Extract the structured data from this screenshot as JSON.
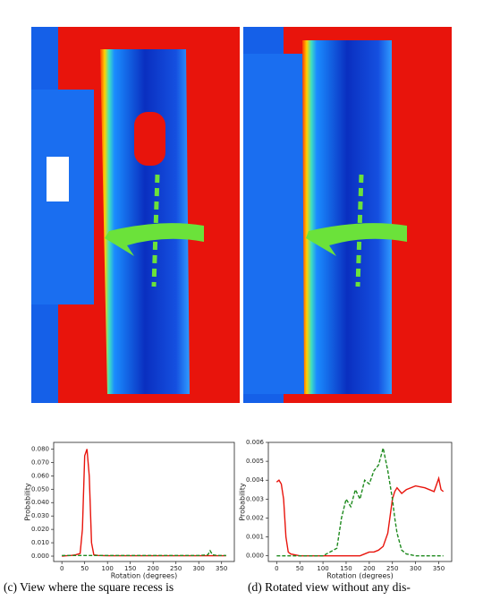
{
  "chart_data": [
    {
      "type": "line",
      "xlabel": "Rotation (degrees)",
      "ylabel": "Probability",
      "x": [
        0,
        10,
        20,
        30,
        40,
        45,
        50,
        55,
        60,
        65,
        70,
        80,
        100,
        150,
        200,
        250,
        300,
        320,
        325,
        330,
        340,
        360
      ],
      "series": [
        {
          "color": "#e8140c",
          "linestyle": "solid",
          "values": [
            0,
            0.0003,
            0.0005,
            0.001,
            0.002,
            0.02,
            0.075,
            0.08,
            0.06,
            0.01,
            0.001,
            0.0005,
            0.0003,
            0.0003,
            0.0003,
            0.0003,
            0.0003,
            0.0003,
            0.0003,
            0.0003,
            0.0003,
            0.0003
          ]
        },
        {
          "color": "#1e8a1e",
          "linestyle": "dashed",
          "values": [
            0.0005,
            0.0005,
            0.0005,
            0.0005,
            0.0005,
            0.0005,
            0.0005,
            0.0005,
            0.0005,
            0.0005,
            0.0005,
            0.0005,
            0.0005,
            0.0005,
            0.0005,
            0.0005,
            0.0005,
            0.001,
            0.004,
            0.001,
            0.0005,
            0.0005
          ]
        }
      ],
      "xlim": [
        -18,
        378
      ],
      "ylim": [
        -0.004,
        0.085
      ],
      "xticks": [
        0,
        50,
        100,
        150,
        200,
        250,
        300,
        350
      ],
      "yticks": [
        {
          "value": 0,
          "label": "0.000"
        },
        {
          "value": 0.01,
          "label": "0.010"
        },
        {
          "value": 0.02,
          "label": "0.020"
        },
        {
          "value": 0.03,
          "label": "0.030"
        },
        {
          "value": 0.04,
          "label": "0.040"
        },
        {
          "value": 0.05,
          "label": "0.050"
        },
        {
          "value": 0.06,
          "label": "0.060"
        },
        {
          "value": 0.07,
          "label": "0.070"
        },
        {
          "value": 0.08,
          "label": "0.080"
        }
      ]
    },
    {
      "type": "line",
      "xlabel": "Rotation (degrees)",
      "ylabel": "Probability",
      "x": [
        0,
        5,
        10,
        15,
        20,
        25,
        30,
        50,
        100,
        130,
        140,
        150,
        160,
        170,
        180,
        190,
        200,
        210,
        220,
        230,
        240,
        250,
        255,
        260,
        270,
        280,
        300,
        320,
        340,
        350,
        355,
        360
      ],
      "series": [
        {
          "color": "#e8140c",
          "linestyle": "solid",
          "values": [
            0.0039,
            0.004,
            0.0038,
            0.003,
            0.001,
            0.0002,
            0.0001,
            0,
            0,
            0,
            0,
            0,
            0,
            0,
            0,
            0.0001,
            0.0002,
            0.0002,
            0.0003,
            0.0005,
            0.0012,
            0.003,
            0.0034,
            0.0036,
            0.0033,
            0.0035,
            0.0037,
            0.0036,
            0.0034,
            0.0041,
            0.0035,
            0.0034
          ]
        },
        {
          "color": "#1e8a1e",
          "linestyle": "dashed",
          "values": [
            0,
            0,
            0,
            0,
            0,
            0,
            0,
            0,
            0,
            0.0004,
            0.002,
            0.003,
            0.0026,
            0.0035,
            0.003,
            0.004,
            0.0038,
            0.0045,
            0.0048,
            0.0057,
            0.0045,
            0.003,
            0.002,
            0.0012,
            0.0003,
            0.0001,
            0,
            0,
            0,
            0,
            0,
            0
          ]
        }
      ],
      "xlim": [
        -18,
        378
      ],
      "ylim": [
        -0.0003,
        0.006
      ],
      "xticks": [
        0,
        50,
        100,
        150,
        200,
        250,
        300,
        350
      ],
      "yticks": [
        {
          "value": 0,
          "label": "0.000"
        },
        {
          "value": 0.001,
          "label": "0.001"
        },
        {
          "value": 0.002,
          "label": "0.002"
        },
        {
          "value": 0.003,
          "label": "0.003"
        },
        {
          "value": 0.004,
          "label": "0.004"
        },
        {
          "value": 0.005,
          "label": "0.005"
        },
        {
          "value": 0.006,
          "label": "0.006"
        }
      ]
    }
  ],
  "captions": [
    "(c) View where the square recess is",
    "(d) Rotated view without any dis-"
  ]
}
